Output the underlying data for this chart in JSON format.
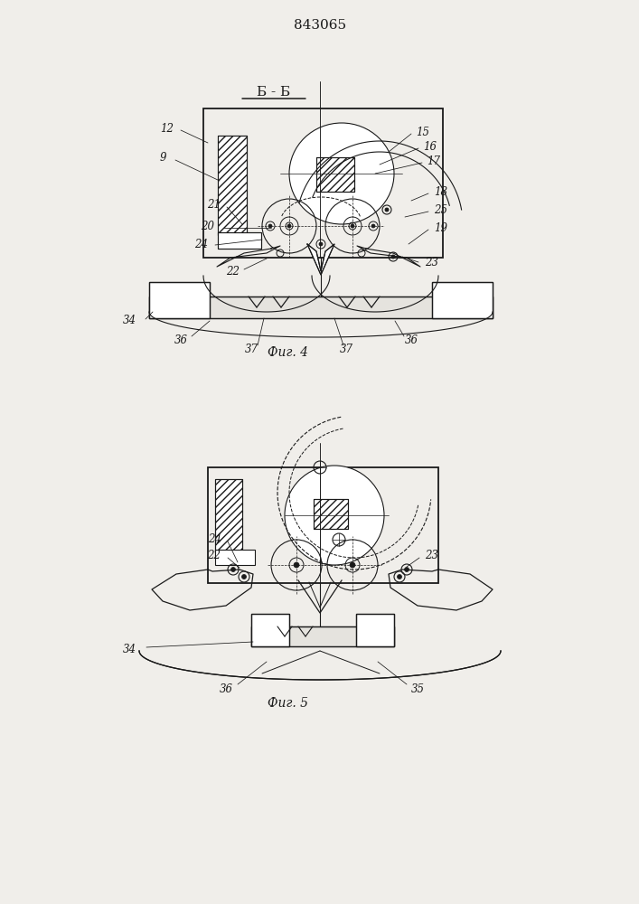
{
  "title": "843065",
  "bg_color": "#f0eeea",
  "line_color": "#1a1a1a",
  "fig4_label": "Фиг. 4",
  "fig5_label": "Фиг. 5",
  "section_label": "Б - Б"
}
